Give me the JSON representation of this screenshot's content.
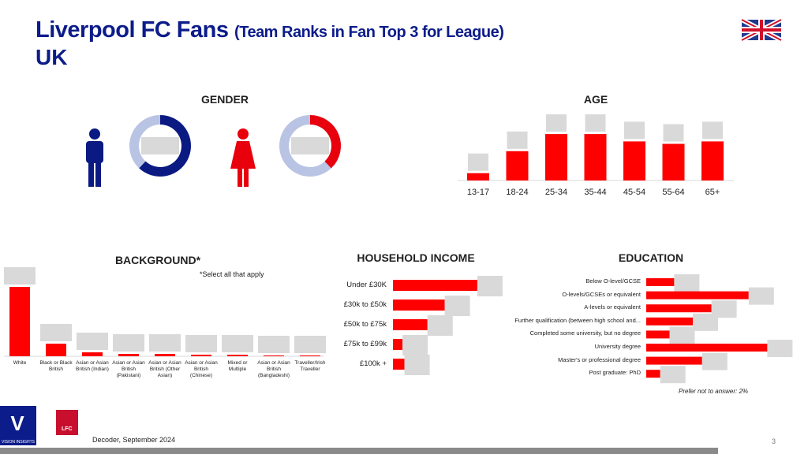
{
  "header": {
    "title": "Liverpool FC Fans",
    "subtitle": "(Team Ranks in Fan Top 3 for League)",
    "region": "UK"
  },
  "chart_data": [
    {
      "type": "donut",
      "title": "GENDER",
      "values": [
        62,
        38
      ],
      "colors": [
        "#0b1a82",
        "#e8000d"
      ],
      "track": "#b9c3e3"
    },
    {
      "type": "bar",
      "title": "AGE",
      "categories": [
        "13-17",
        "18-24",
        "25-34",
        "35-44",
        "45-54",
        "55-64",
        "65+"
      ],
      "values": [
        3,
        12,
        19,
        19,
        16,
        15,
        16
      ],
      "color": "#ff0000"
    },
    {
      "type": "bar",
      "title": "BACKGROUND*",
      "note": "*Select all that apply",
      "categories": [
        "White",
        "Black or Black British",
        "Asian or Asian British (Indian)",
        "Asian or Asian British (Pakistani)",
        "Asian or Asian British (Other Asian)",
        "Asian or Asian British (Chinese)",
        "Mixed or Multiple",
        "Asian or Asian British (Bangladeshi)",
        "Traveller/Irish Traveller"
      ],
      "values": [
        88,
        16,
        5,
        3,
        3,
        2,
        2,
        1,
        1
      ],
      "color": "#ff0000"
    },
    {
      "type": "hbar",
      "title": "HOUSEHOLD INCOME",
      "categories": [
        "Under £30K",
        "£30k to £50k",
        "£50k to £75k",
        "£75k to £99k",
        "£100k +"
      ],
      "values": [
        44,
        27,
        18,
        5,
        6
      ],
      "color": "#ff0000"
    },
    {
      "type": "hbar",
      "title": "EDUCATION",
      "note": "Prefer not to answer: 2%",
      "categories": [
        "Below O-level/GCSE",
        "O-levels/GCSEs or equivalent",
        "A-levels or equivalent",
        "Further qualification (between high school and...",
        "Completed some university, but no degree",
        "University degree",
        "Master's or professional degree",
        "Post graduate: PhD"
      ],
      "values": [
        6,
        22,
        14,
        10,
        5,
        26,
        12,
        3
      ],
      "color": "#ff0000"
    }
  ],
  "footer": {
    "logo": "VISION INSIGHTS",
    "club": "LFC",
    "source": "Decoder, September 2024",
    "page": "3"
  }
}
